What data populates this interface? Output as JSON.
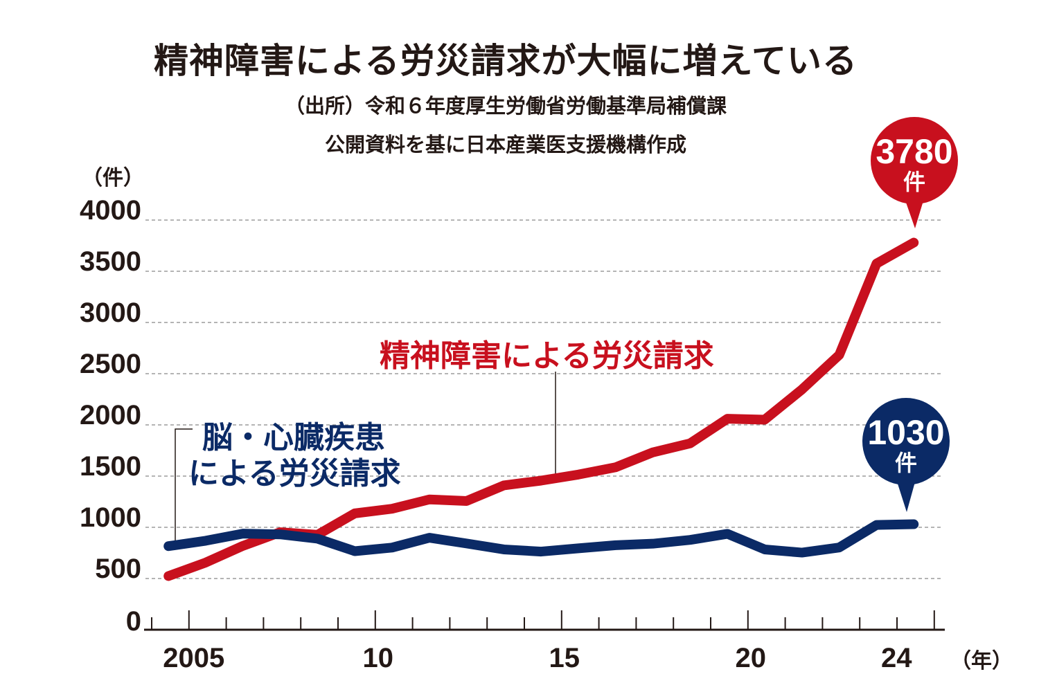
{
  "title": "精神障害による労災請求が大幅に増えている",
  "source_line1": "（出所）令和６年度厚生労働省労働基準局補償課",
  "source_line2": "公開資料を基に日本産業医支援機構作成",
  "colors": {
    "red": "#c8101e",
    "navy": "#0b2a66",
    "grid": "#888888"
  },
  "chart_data": {
    "type": "line",
    "title": "精神障害による労災請求が大幅に増えている",
    "ylabel": "（件）",
    "xlabel": "（年）",
    "ylim": [
      0,
      4000
    ],
    "yticks": [
      "0",
      "500",
      "1000",
      "1500",
      "2000",
      "2500",
      "3000",
      "3500",
      "4000"
    ],
    "xtick_labels": [
      {
        "year": 2005,
        "label": "2005"
      },
      {
        "year": 2010,
        "label": "10"
      },
      {
        "year": 2015,
        "label": "15"
      },
      {
        "year": 2020,
        "label": "20"
      },
      {
        "year": 2024,
        "label": "24"
      }
    ],
    "x": [
      2004,
      2005,
      2006,
      2007,
      2008,
      2009,
      2010,
      2011,
      2012,
      2013,
      2014,
      2015,
      2016,
      2017,
      2018,
      2019,
      2020,
      2021,
      2022,
      2023,
      2024
    ],
    "grid": "horizontal dashed",
    "series": [
      {
        "name": "精神障害による労災請求",
        "color": "#c8101e",
        "values": [
          524,
          656,
          819,
          952,
          927,
          1136,
          1181,
          1272,
          1257,
          1409,
          1456,
          1515,
          1586,
          1732,
          1820,
          2060,
          2051,
          2346,
          2683,
          3575,
          3780
        ],
        "callout": {
          "value": "3780",
          "unit": "件"
        }
      },
      {
        "name_line1": "脳・心臓疾患",
        "name_line2": "による労災請求",
        "color": "#0b2a66",
        "values": [
          816,
          869,
          938,
          931,
          889,
          767,
          802,
          898,
          842,
          784,
          763,
          795,
          825,
          840,
          877,
          936,
          784,
          753,
          803,
          1023,
          1030
        ],
        "callout": {
          "value": "1030",
          "unit": "件"
        }
      }
    ]
  }
}
